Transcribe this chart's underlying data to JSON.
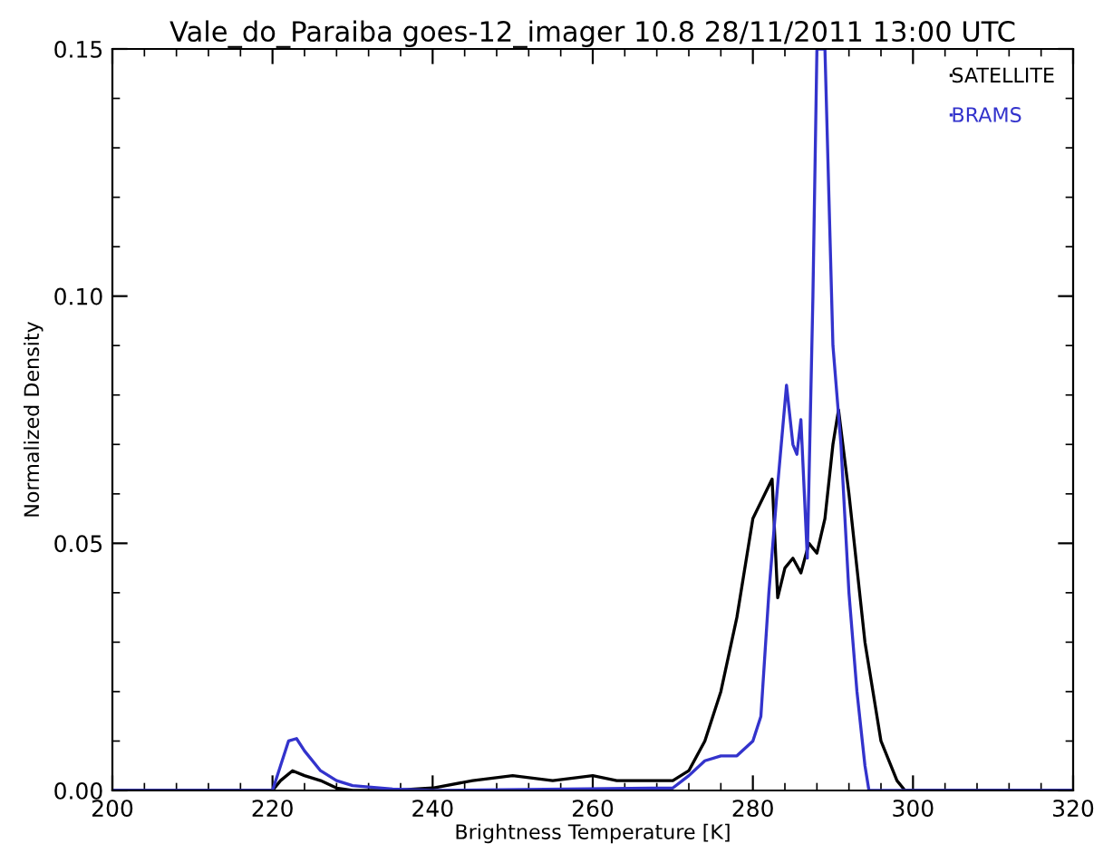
{
  "chart_data": {
    "type": "line",
    "title": "Vale_do_Paraiba goes-12_imager 10.8 28/11/2011 13:00 UTC",
    "xlabel": "Brightness Temperature [K]",
    "ylabel": "Normalized Density",
    "xlim": [
      200,
      320
    ],
    "xticks": [
      200,
      220,
      240,
      260,
      280,
      300,
      320
    ],
    "ylim": [
      0,
      0.15
    ],
    "yticks": [
      {
        "value": 0,
        "label": "0.00"
      },
      {
        "value": 0.05,
        "label": "0.05"
      },
      {
        "value": 0.1,
        "label": "0.10"
      },
      {
        "value": 0.15,
        "label": "0.15"
      }
    ],
    "legend": "top right",
    "grid": false,
    "series": [
      {
        "name": "SATELLITE",
        "color": "#000000",
        "x": [
          200,
          220,
          221,
          222.5,
          224,
          226,
          228,
          230,
          235,
          240,
          245,
          250,
          255,
          260,
          263,
          265,
          270,
          272,
          274,
          276,
          278,
          280,
          282.4,
          283.1,
          284,
          285,
          286,
          287,
          288,
          289,
          290,
          290.7,
          292,
          293,
          294,
          296,
          298,
          299,
          320
        ],
        "values": [
          0,
          0,
          0.002,
          0.004,
          0.003,
          0.002,
          0.0005,
          0,
          0,
          0.0005,
          0.002,
          0.003,
          0.002,
          0.003,
          0.002,
          0.002,
          0.002,
          0.004,
          0.01,
          0.02,
          0.035,
          0.055,
          0.063,
          0.039,
          0.045,
          0.047,
          0.044,
          0.05,
          0.048,
          0.055,
          0.07,
          0.077,
          0.06,
          0.045,
          0.03,
          0.01,
          0.002,
          0,
          0
        ]
      },
      {
        "name": "BRAMS",
        "color": "#3333cc",
        "x": [
          200,
          220,
          221,
          222,
          223,
          224,
          226,
          228,
          230,
          235,
          240,
          270,
          272,
          274,
          276,
          278,
          280,
          281,
          282,
          283,
          284.2,
          285,
          285.5,
          286,
          286.8,
          287.5,
          288,
          289,
          289.5,
          290,
          291,
          292,
          293,
          294,
          294.5,
          320
        ],
        "values": [
          0,
          0,
          0.005,
          0.01,
          0.0105,
          0.008,
          0.004,
          0.002,
          0.001,
          0.0003,
          0,
          0.0005,
          0.003,
          0.006,
          0.007,
          0.007,
          0.01,
          0.015,
          0.04,
          0.06,
          0.082,
          0.07,
          0.068,
          0.075,
          0.047,
          0.1,
          0.15,
          0.15,
          0.12,
          0.09,
          0.07,
          0.04,
          0.02,
          0.005,
          0,
          0
        ]
      }
    ]
  }
}
